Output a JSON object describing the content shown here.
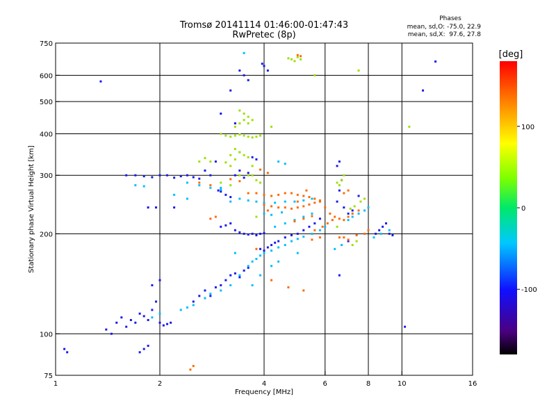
{
  "chart_data": {
    "type": "scatter",
    "title": "Tromsø 20141114 01:46:00-01:47:43",
    "subtitle": "RwPretec (8p)",
    "xlabel": "Frequency [MHz]",
    "ylabel": "Stationary phase Virtual Height [km]",
    "x_scale": "log",
    "y_scale": "log",
    "xlim": [
      1,
      16
    ],
    "ylim": [
      75,
      750
    ],
    "x_ticks": [
      1,
      2,
      4,
      6,
      8,
      10,
      16
    ],
    "x_gridlines": [
      2,
      4,
      6,
      8,
      10
    ],
    "y_ticks": [
      75,
      100,
      200,
      300,
      400,
      500,
      600,
      750
    ],
    "y_gridlines": [
      100,
      200,
      300,
      400,
      500,
      600
    ],
    "grid": true,
    "phase_stats": {
      "heading": "Phases",
      "line_o": "mean, sd,O: -75.0, 22.9",
      "line_x": "mean, sd,X:  97.6, 27.8"
    },
    "colorbar": {
      "label": "[deg]",
      "range": [
        -180,
        180
      ],
      "ticks": [
        100,
        0,
        -100
      ],
      "colormap": "rainbow: black-purple-blue-cyan-green-yellow-orange-red"
    },
    "series": [
      {
        "points": [
          [
            1.06,
            90
          ],
          [
            1.08,
            88
          ],
          [
            1.35,
            575
          ],
          [
            1.4,
            103
          ],
          [
            1.45,
            100
          ],
          [
            1.5,
            108
          ],
          [
            1.55,
            112
          ],
          [
            1.6,
            105
          ],
          [
            1.65,
            110
          ],
          [
            1.7,
            108
          ],
          [
            1.75,
            115
          ],
          [
            1.8,
            113
          ],
          [
            1.85,
            110
          ],
          [
            1.9,
            118
          ],
          [
            1.95,
            125
          ],
          [
            2.0,
            108
          ],
          [
            2.05,
            106
          ],
          [
            2.1,
            107
          ],
          [
            2.15,
            108
          ],
          [
            1.6,
            300
          ],
          [
            1.7,
            300
          ],
          [
            1.8,
            298
          ],
          [
            1.9,
            296
          ],
          [
            2.0,
            300
          ],
          [
            2.1,
            300
          ],
          [
            2.2,
            295
          ],
          [
            2.3,
            298
          ],
          [
            2.4,
            300
          ],
          [
            2.5,
            296
          ],
          [
            2.6,
            293
          ],
          [
            1.75,
            88
          ],
          [
            1.8,
            90
          ],
          [
            1.85,
            92
          ],
          [
            1.9,
            140
          ],
          [
            2.0,
            145
          ],
          [
            1.85,
            240
          ],
          [
            1.95,
            240
          ],
          [
            2.2,
            240
          ],
          [
            2.5,
            125
          ],
          [
            2.6,
            130
          ],
          [
            2.7,
            135
          ],
          [
            2.8,
            130
          ],
          [
            2.9,
            138
          ],
          [
            3.0,
            140
          ],
          [
            3.1,
            145
          ],
          [
            3.2,
            150
          ],
          [
            3.3,
            152
          ],
          [
            3.4,
            148
          ],
          [
            3.5,
            155
          ],
          [
            3.6,
            158
          ],
          [
            3.0,
            210
          ],
          [
            3.1,
            212
          ],
          [
            3.2,
            215
          ],
          [
            3.3,
            205
          ],
          [
            3.4,
            202
          ],
          [
            3.5,
            200
          ],
          [
            3.6,
            199
          ],
          [
            3.7,
            200
          ],
          [
            3.8,
            198
          ],
          [
            3.9,
            200
          ],
          [
            4.0,
            201
          ],
          [
            3.3,
            300
          ],
          [
            3.4,
            310
          ],
          [
            3.5,
            295
          ],
          [
            3.6,
            305
          ],
          [
            3.4,
            620
          ],
          [
            3.5,
            600
          ],
          [
            3.6,
            580
          ],
          [
            3.2,
            540
          ],
          [
            3.0,
            460
          ],
          [
            3.3,
            430
          ],
          [
            3.7,
            340
          ],
          [
            3.8,
            335
          ],
          [
            2.9,
            330
          ],
          [
            2.7,
            310
          ],
          [
            2.8,
            300
          ],
          [
            3.9,
            180
          ],
          [
            4.0,
            178
          ],
          [
            4.1,
            182
          ],
          [
            4.2,
            185
          ],
          [
            4.3,
            188
          ],
          [
            4.4,
            190
          ],
          [
            4.6,
            195
          ],
          [
            4.8,
            198
          ],
          [
            5.0,
            200
          ],
          [
            5.2,
            205
          ],
          [
            5.4,
            210
          ],
          [
            5.6,
            215
          ],
          [
            5.8,
            222
          ],
          [
            4.1,
            620
          ],
          [
            4.0,
            640
          ],
          [
            3.95,
            650
          ],
          [
            2.95,
            270
          ],
          [
            3.0,
            268
          ],
          [
            3.1,
            262
          ],
          [
            3.2,
            258
          ],
          [
            6.5,
            250
          ],
          [
            6.6,
            270
          ],
          [
            6.7,
            290
          ],
          [
            6.5,
            320
          ],
          [
            6.6,
            330
          ],
          [
            6.8,
            240
          ],
          [
            7.0,
            230
          ],
          [
            7.2,
            235
          ],
          [
            7.5,
            260
          ],
          [
            8.4,
            200
          ],
          [
            8.6,
            205
          ],
          [
            8.8,
            210
          ],
          [
            9.0,
            215
          ],
          [
            9.2,
            200
          ],
          [
            9.4,
            198
          ],
          [
            7.0,
            190
          ],
          [
            6.6,
            150
          ],
          [
            10.2,
            105
          ],
          [
            11.5,
            540
          ],
          [
            12.5,
            660
          ]
        ]
      },
      {
        "points": [
          [
            1.9,
            112
          ],
          [
            2.0,
            115
          ],
          [
            2.3,
            118
          ],
          [
            2.4,
            120
          ],
          [
            2.5,
            122
          ],
          [
            2.7,
            128
          ],
          [
            2.8,
            132
          ],
          [
            3.0,
            135
          ],
          [
            3.2,
            140
          ],
          [
            3.4,
            150
          ],
          [
            3.6,
            160
          ],
          [
            3.7,
            165
          ],
          [
            3.8,
            168
          ],
          [
            3.9,
            172
          ],
          [
            4.0,
            175
          ],
          [
            4.2,
            178
          ],
          [
            4.4,
            182
          ],
          [
            4.6,
            185
          ],
          [
            4.8,
            190
          ],
          [
            5.0,
            193
          ],
          [
            5.2,
            196
          ],
          [
            5.5,
            200
          ],
          [
            5.8,
            205
          ],
          [
            6.0,
            210
          ],
          [
            4.3,
            210
          ],
          [
            4.6,
            215
          ],
          [
            4.9,
            220
          ],
          [
            5.2,
            225
          ],
          [
            5.5,
            230
          ],
          [
            2.4,
            285
          ],
          [
            2.6,
            280
          ],
          [
            2.8,
            275
          ],
          [
            3.0,
            272
          ],
          [
            3.4,
            255
          ],
          [
            3.6,
            252
          ],
          [
            3.8,
            250
          ],
          [
            4.0,
            248
          ],
          [
            4.3,
            248
          ],
          [
            4.6,
            250
          ],
          [
            4.9,
            250
          ],
          [
            5.2,
            252
          ],
          [
            5.5,
            255
          ],
          [
            4.0,
            230
          ],
          [
            4.2,
            228
          ],
          [
            4.5,
            232
          ],
          [
            3.2,
            250
          ],
          [
            3.4,
            352
          ],
          [
            3.0,
            275
          ],
          [
            7.0,
            220
          ],
          [
            7.2,
            225
          ],
          [
            7.5,
            230
          ],
          [
            7.8,
            235
          ],
          [
            8.0,
            240
          ],
          [
            8.3,
            195
          ],
          [
            8.7,
            200
          ],
          [
            9.2,
            205
          ],
          [
            6.4,
            180
          ],
          [
            6.7,
            185
          ],
          [
            2.2,
            262
          ],
          [
            2.4,
            255
          ],
          [
            3.7,
            140
          ],
          [
            3.9,
            150
          ],
          [
            4.2,
            160
          ],
          [
            4.4,
            165
          ],
          [
            5.0,
            175
          ],
          [
            4.4,
            330
          ],
          [
            4.6,
            325
          ],
          [
            1.7,
            280
          ],
          [
            1.8,
            278
          ],
          [
            3.5,
            700
          ],
          [
            3.3,
            175
          ]
        ]
      },
      {
        "points": [
          [
            3.0,
            400
          ],
          [
            3.1,
            395
          ],
          [
            3.2,
            392
          ],
          [
            3.3,
            395
          ],
          [
            3.4,
            398
          ],
          [
            3.5,
            395
          ],
          [
            3.6,
            392
          ],
          [
            3.7,
            390
          ],
          [
            3.8,
            392
          ],
          [
            3.9,
            395
          ],
          [
            3.3,
            420
          ],
          [
            3.4,
            430
          ],
          [
            3.5,
            440
          ],
          [
            3.6,
            450
          ],
          [
            3.3,
            360
          ],
          [
            3.4,
            352
          ],
          [
            3.5,
            345
          ],
          [
            3.6,
            340
          ],
          [
            3.2,
            345
          ],
          [
            3.3,
            335
          ],
          [
            3.1,
            328
          ],
          [
            3.2,
            320
          ],
          [
            3.6,
            430
          ],
          [
            3.7,
            440
          ],
          [
            3.4,
            470
          ],
          [
            3.5,
            460
          ],
          [
            5.0,
            680
          ],
          [
            4.8,
            670
          ],
          [
            4.9,
            662
          ],
          [
            5.1,
            670
          ],
          [
            4.7,
            675
          ],
          [
            6.6,
            280
          ],
          [
            6.7,
            290
          ],
          [
            6.8,
            300
          ],
          [
            6.5,
            285
          ],
          [
            7.1,
            238
          ],
          [
            7.3,
            242
          ],
          [
            7.6,
            250
          ],
          [
            7.8,
            255
          ],
          [
            6.5,
            210
          ],
          [
            3.8,
            225
          ],
          [
            2.8,
            330
          ],
          [
            2.6,
            330
          ],
          [
            2.7,
            338
          ],
          [
            3.7,
            300
          ],
          [
            3.8,
            290
          ],
          [
            3.9,
            285
          ],
          [
            3.0,
            285
          ],
          [
            3.2,
            280
          ],
          [
            4.2,
            420
          ],
          [
            7.5,
            620
          ],
          [
            10.5,
            420
          ],
          [
            7.2,
            185
          ],
          [
            7.4,
            190
          ],
          [
            5.6,
            600
          ],
          [
            3.6,
            300
          ],
          [
            3.4,
            300
          ],
          [
            3.7,
            320
          ]
        ]
      },
      {
        "points": [
          [
            3.6,
            265
          ],
          [
            3.8,
            265
          ],
          [
            4.0,
            262
          ],
          [
            4.2,
            260
          ],
          [
            4.4,
            262
          ],
          [
            4.6,
            265
          ],
          [
            4.8,
            265
          ],
          [
            5.0,
            262
          ],
          [
            5.2,
            260
          ],
          [
            5.4,
            258
          ],
          [
            5.6,
            255
          ],
          [
            5.8,
            252
          ],
          [
            4.0,
            245
          ],
          [
            4.2,
            242
          ],
          [
            4.4,
            240
          ],
          [
            4.6,
            240
          ],
          [
            4.8,
            238
          ],
          [
            5.0,
            240
          ],
          [
            5.2,
            242
          ],
          [
            5.4,
            245
          ],
          [
            5.6,
            248
          ],
          [
            5.8,
            250
          ],
          [
            6.0,
            240
          ],
          [
            6.2,
            230
          ],
          [
            6.4,
            225
          ],
          [
            6.6,
            222
          ],
          [
            6.8,
            220
          ],
          [
            7.0,
            225
          ],
          [
            7.2,
            230
          ],
          [
            7.5,
            235
          ],
          [
            6.8,
            265
          ],
          [
            7.0,
            270
          ],
          [
            5.6,
            205
          ],
          [
            5.9,
            210
          ],
          [
            6.1,
            215
          ],
          [
            6.3,
            220
          ],
          [
            4.9,
            218
          ],
          [
            5.2,
            222
          ],
          [
            5.5,
            226
          ],
          [
            6.6,
            195
          ],
          [
            6.8,
            195
          ],
          [
            7.0,
            192
          ],
          [
            7.4,
            198
          ],
          [
            5.5,
            192
          ],
          [
            5.8,
            195
          ],
          [
            2.6,
            285
          ],
          [
            2.8,
            280
          ],
          [
            3.2,
            292
          ],
          [
            3.4,
            288
          ],
          [
            2.8,
            222
          ],
          [
            2.9,
            225
          ],
          [
            2.5,
            80
          ],
          [
            2.45,
            78
          ],
          [
            4.2,
            145
          ],
          [
            4.7,
            138
          ],
          [
            5.2,
            135
          ],
          [
            5.0,
            690
          ],
          [
            5.1,
            685
          ],
          [
            7.8,
            200
          ],
          [
            8.0,
            205
          ],
          [
            5.3,
            270
          ],
          [
            4.1,
            305
          ],
          [
            3.9,
            312
          ],
          [
            3.8,
            180
          ],
          [
            4.1,
            235
          ],
          [
            5.0,
            250
          ]
        ]
      }
    ]
  }
}
